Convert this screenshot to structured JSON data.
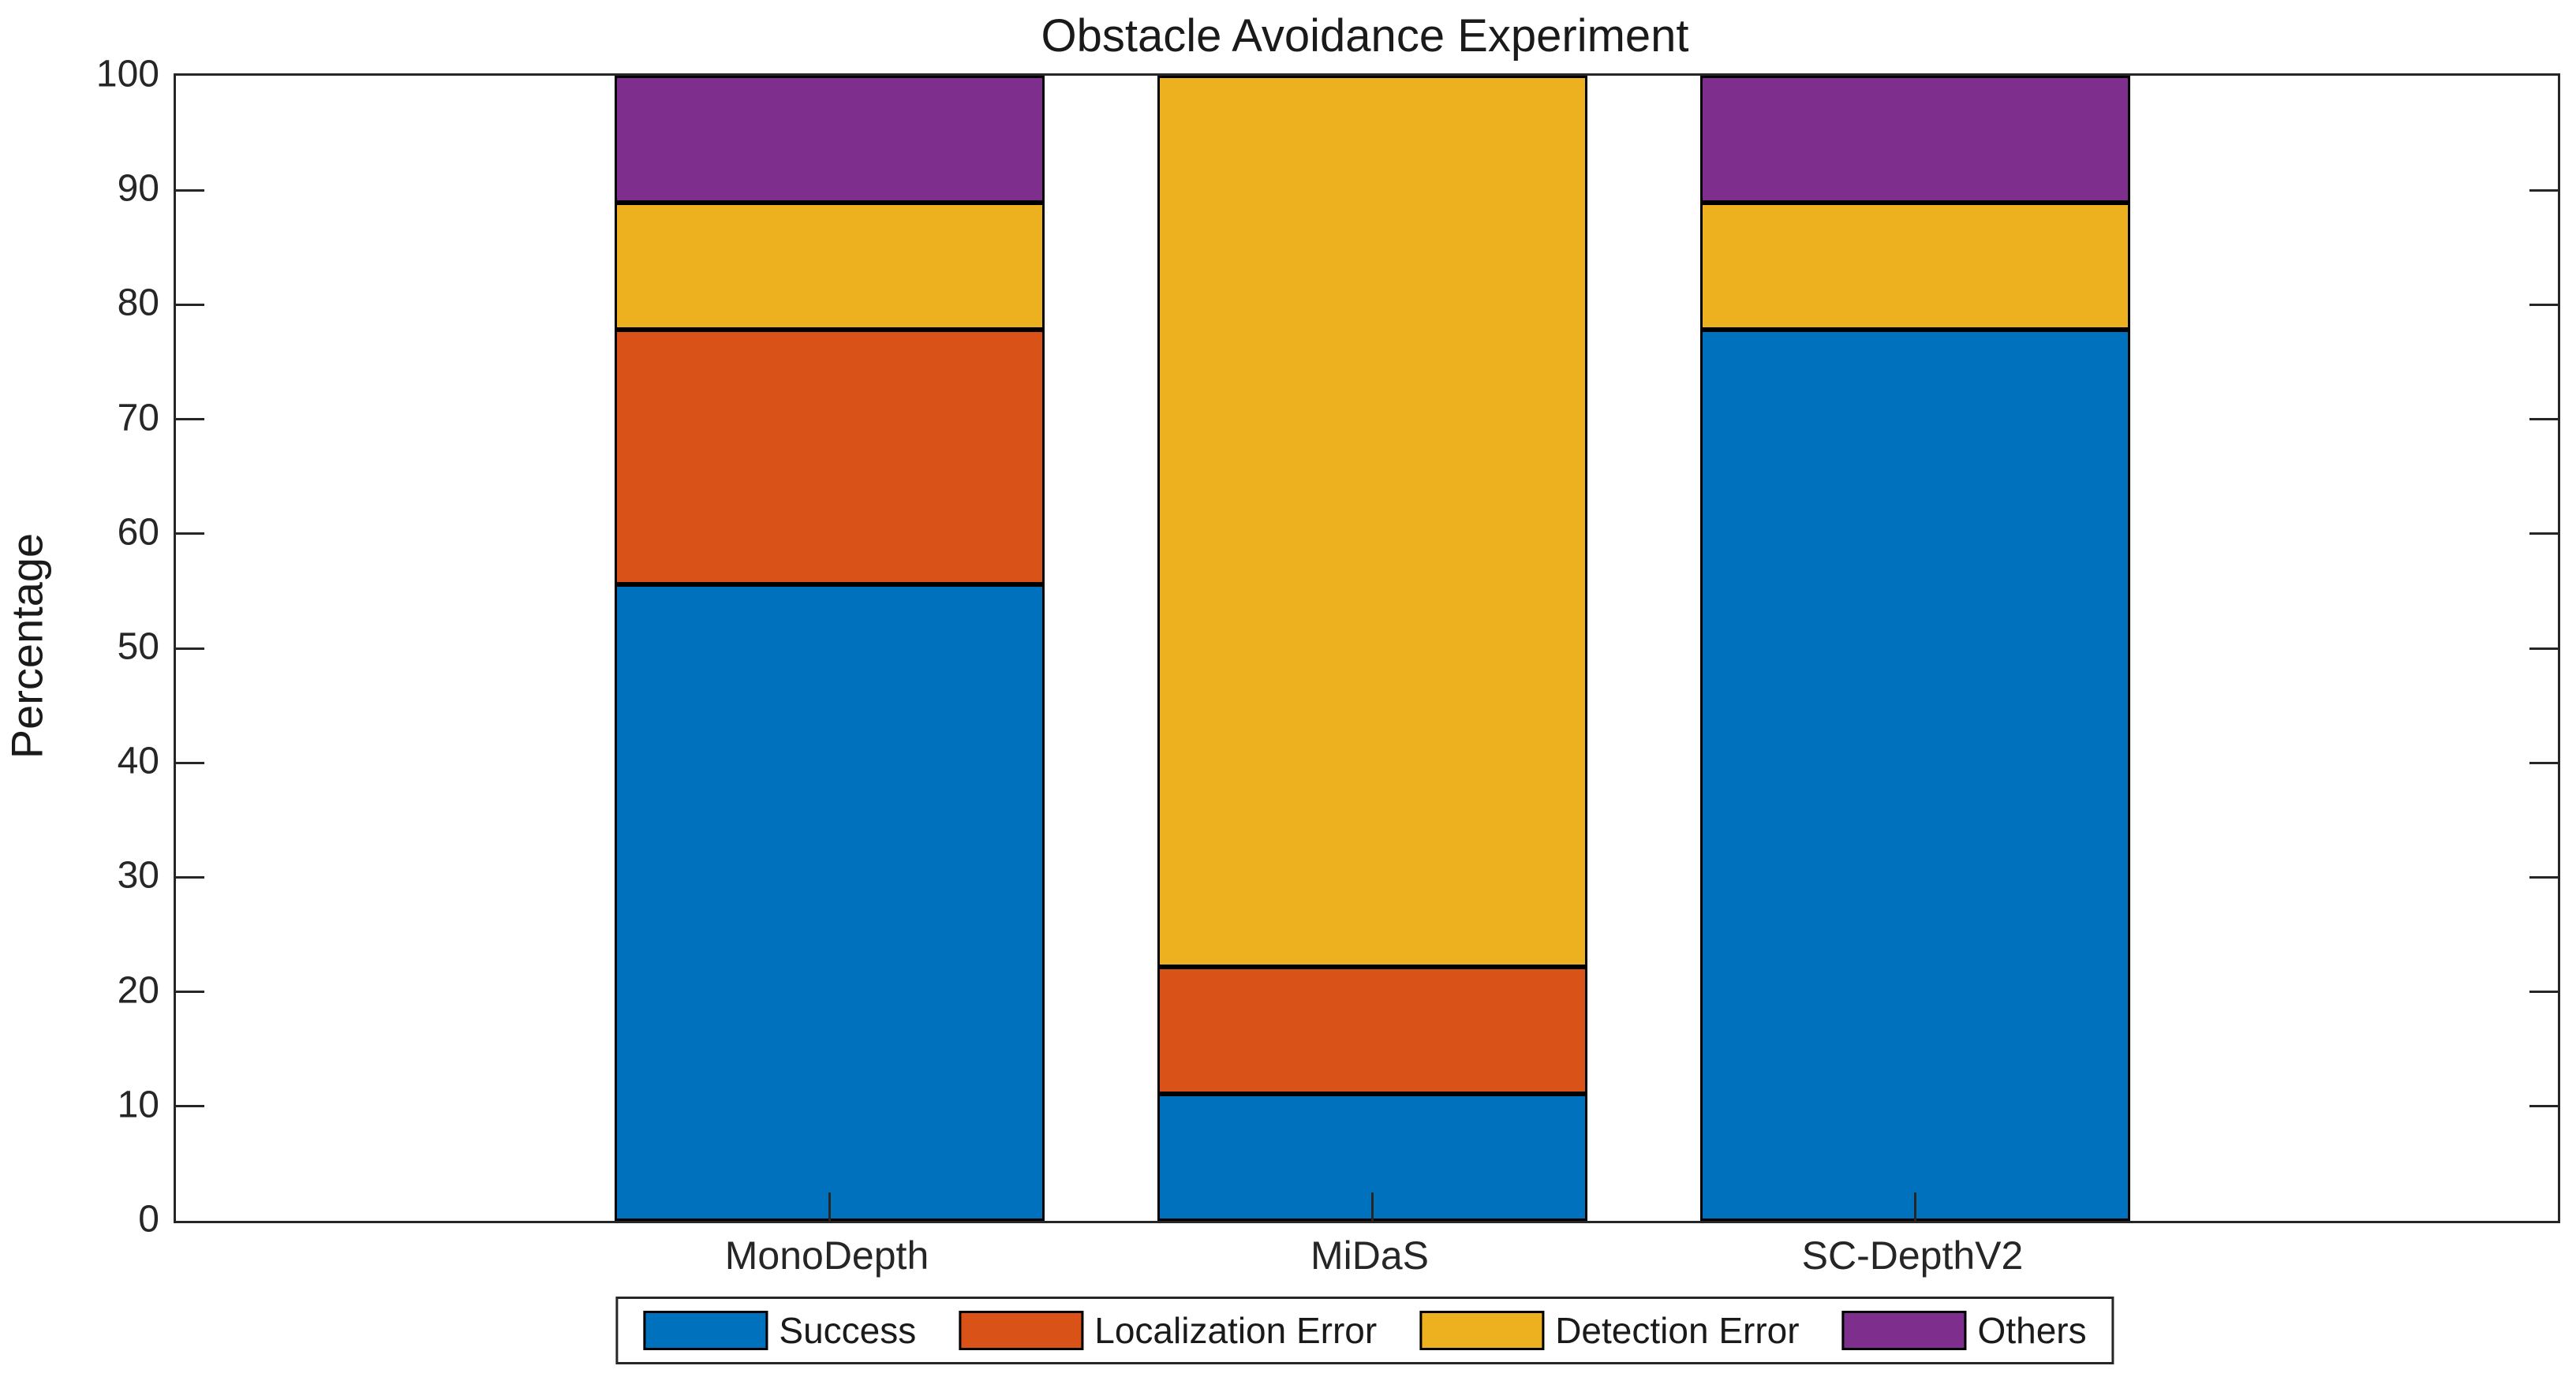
{
  "chart_data": {
    "type": "bar",
    "stacked": true,
    "title": "Obstacle Avoidance Experiment",
    "xlabel": "",
    "ylabel": "Percentage",
    "categories": [
      "MonoDepth",
      "MiDaS",
      "SC-DepthV2"
    ],
    "series": [
      {
        "name": "Success",
        "color": "#0072BD",
        "values": [
          55.6,
          11.1,
          77.8
        ]
      },
      {
        "name": "Localization Error",
        "color": "#D95319",
        "values": [
          22.2,
          11.1,
          0
        ]
      },
      {
        "name": "Detection Error",
        "color": "#EDB120",
        "values": [
          11.1,
          77.8,
          11.1
        ]
      },
      {
        "name": "Others",
        "color": "#7E2F8E",
        "values": [
          11.1,
          0,
          11.1
        ]
      }
    ],
    "ylim": [
      0,
      100
    ],
    "yticks": [
      0,
      10,
      20,
      30,
      40,
      50,
      60,
      70,
      80,
      90,
      100
    ],
    "grid": false,
    "legend_position": "south-outside",
    "axis_color": "#262626",
    "bar_edge_color": "#000000",
    "background_color": "#ffffff"
  }
}
